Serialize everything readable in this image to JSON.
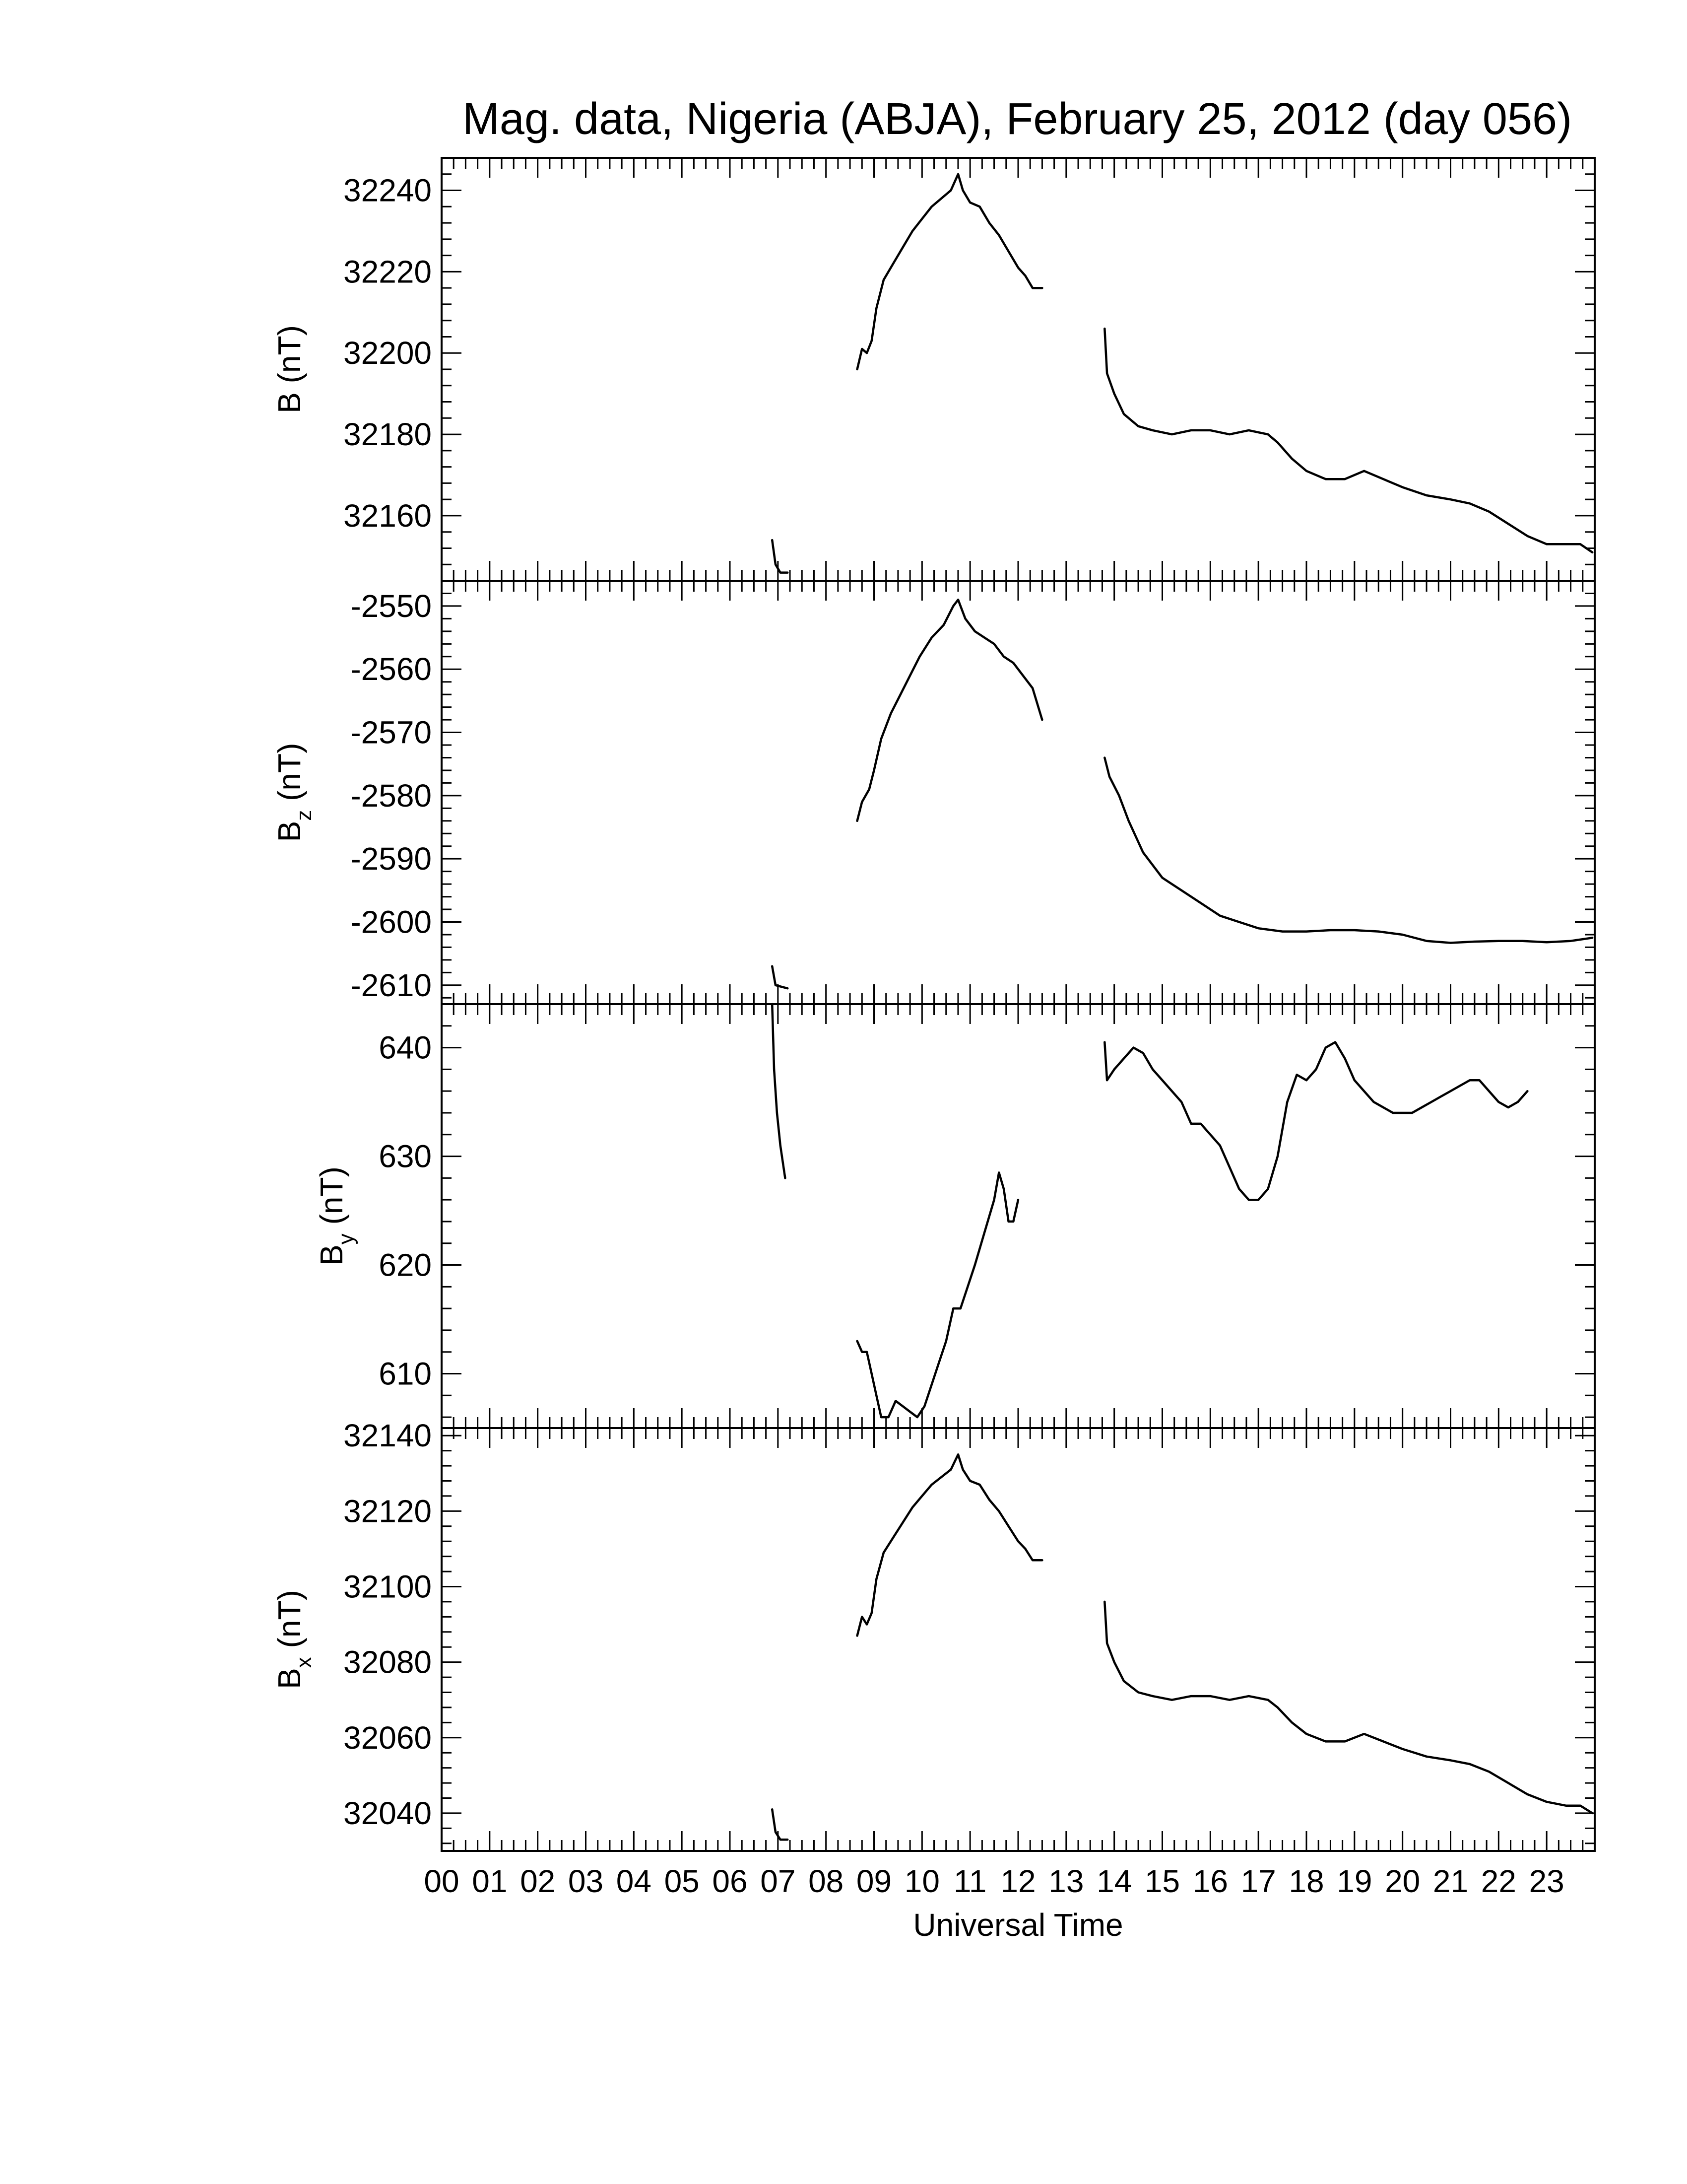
{
  "chart_data": {
    "type": "line",
    "title": "Mag. data, Nigeria (ABJA), February 25, 2012 (day 056)",
    "xlabel": "Universal Time",
    "xlim": [
      0,
      24
    ],
    "x_tick_labels": [
      "00",
      "01",
      "02",
      "03",
      "04",
      "05",
      "06",
      "07",
      "08",
      "09",
      "10",
      "11",
      "12",
      "13",
      "14",
      "15",
      "16",
      "17",
      "18",
      "19",
      "20",
      "21",
      "22",
      "23"
    ],
    "panels": [
      {
        "ylabel_main": "B",
        "ylabel_sub": "",
        "ylabel_unit": "(nT)",
        "ylim": [
          32144,
          32248
        ],
        "y_ticks": [
          32160,
          32180,
          32200,
          32220,
          32240
        ],
        "segments": [
          [
            [
              6.88,
              32154
            ],
            [
              6.95,
              32148
            ],
            [
              7.05,
              32146
            ],
            [
              7.2,
              32146
            ]
          ],
          [
            [
              8.65,
              32196
            ],
            [
              8.75,
              32201
            ],
            [
              8.85,
              32200
            ],
            [
              8.95,
              32203
            ],
            [
              9.05,
              32211
            ],
            [
              9.2,
              32218
            ],
            [
              9.4,
              32222
            ],
            [
              9.6,
              32226
            ],
            [
              9.8,
              32230
            ],
            [
              10.0,
              32233
            ],
            [
              10.2,
              32236
            ],
            [
              10.4,
              32238
            ],
            [
              10.6,
              32240
            ],
            [
              10.75,
              32244
            ],
            [
              10.85,
              32240
            ],
            [
              11.0,
              32237
            ],
            [
              11.2,
              32236
            ],
            [
              11.4,
              32232
            ],
            [
              11.6,
              32229
            ],
            [
              11.8,
              32225
            ],
            [
              12.0,
              32221
            ],
            [
              12.15,
              32219
            ],
            [
              12.3,
              32216
            ],
            [
              12.5,
              32216
            ]
          ],
          [
            [
              13.8,
              32206
            ],
            [
              13.85,
              32195
            ],
            [
              14.0,
              32190
            ],
            [
              14.2,
              32185
            ],
            [
              14.5,
              32182
            ],
            [
              14.8,
              32181
            ],
            [
              15.2,
              32180
            ],
            [
              15.6,
              32181
            ],
            [
              16.0,
              32181
            ],
            [
              16.4,
              32180
            ],
            [
              16.8,
              32181
            ],
            [
              17.2,
              32180
            ],
            [
              17.4,
              32178
            ],
            [
              17.7,
              32174
            ],
            [
              18.0,
              32171
            ],
            [
              18.4,
              32169
            ],
            [
              18.8,
              32169
            ],
            [
              19.2,
              32171
            ],
            [
              19.6,
              32169
            ],
            [
              20.0,
              32167
            ],
            [
              20.5,
              32165
            ],
            [
              21.0,
              32164
            ],
            [
              21.4,
              32163
            ],
            [
              21.8,
              32161
            ],
            [
              22.2,
              32158
            ],
            [
              22.6,
              32155
            ],
            [
              23.0,
              32153
            ],
            [
              23.4,
              32153
            ],
            [
              23.7,
              32153
            ],
            [
              23.95,
              32151
            ]
          ]
        ]
      },
      {
        "ylabel_main": "B",
        "ylabel_sub": "z",
        "ylabel_unit": "(nT)",
        "ylim": [
          -2613,
          -2546
        ],
        "y_ticks": [
          -2550,
          -2560,
          -2570,
          -2580,
          -2590,
          -2600,
          -2610
        ],
        "segments": [
          [
            [
              6.88,
              -2607
            ],
            [
              6.95,
              -2610
            ],
            [
              7.2,
              -2610.5
            ]
          ],
          [
            [
              8.65,
              -2584
            ],
            [
              8.75,
              -2581
            ],
            [
              8.9,
              -2579
            ],
            [
              9.0,
              -2576
            ],
            [
              9.15,
              -2571
            ],
            [
              9.35,
              -2567
            ],
            [
              9.55,
              -2564
            ],
            [
              9.75,
              -2561
            ],
            [
              9.95,
              -2558
            ],
            [
              10.2,
              -2555
            ],
            [
              10.45,
              -2553
            ],
            [
              10.65,
              -2550
            ],
            [
              10.75,
              -2549
            ],
            [
              10.9,
              -2552
            ],
            [
              11.1,
              -2554
            ],
            [
              11.3,
              -2555
            ],
            [
              11.5,
              -2556
            ],
            [
              11.7,
              -2558
            ],
            [
              11.9,
              -2559
            ],
            [
              12.1,
              -2561
            ],
            [
              12.3,
              -2563
            ],
            [
              12.5,
              -2568
            ]
          ],
          [
            [
              13.8,
              -2574
            ],
            [
              13.9,
              -2577
            ],
            [
              14.1,
              -2580
            ],
            [
              14.3,
              -2584
            ],
            [
              14.6,
              -2589
            ],
            [
              15.0,
              -2593
            ],
            [
              15.4,
              -2595
            ],
            [
              15.8,
              -2597
            ],
            [
              16.2,
              -2599
            ],
            [
              16.6,
              -2600
            ],
            [
              17.0,
              -2601
            ],
            [
              17.5,
              -2601.5
            ],
            [
              18.0,
              -2601.5
            ],
            [
              18.5,
              -2601.3
            ],
            [
              19.0,
              -2601.3
            ],
            [
              19.5,
              -2601.5
            ],
            [
              20.0,
              -2602
            ],
            [
              20.5,
              -2603
            ],
            [
              21.0,
              -2603.3
            ],
            [
              21.5,
              -2603.1
            ],
            [
              22.0,
              -2603
            ],
            [
              22.5,
              -2603
            ],
            [
              23.0,
              -2603.2
            ],
            [
              23.5,
              -2603
            ],
            [
              23.95,
              -2602.5
            ]
          ]
        ]
      },
      {
        "ylabel_main": "B",
        "ylabel_sub": "y",
        "ylabel_unit": "(nT)",
        "ylim": [
          605,
          644
        ],
        "y_ticks": [
          610,
          620,
          630,
          640
        ],
        "segments": [
          [
            [
              6.88,
              644
            ],
            [
              6.92,
              638
            ],
            [
              6.98,
              634
            ],
            [
              7.05,
              631
            ],
            [
              7.15,
              628
            ]
          ],
          [
            [
              8.65,
              613
            ],
            [
              8.75,
              612
            ],
            [
              8.85,
              612
            ],
            [
              8.95,
              610
            ],
            [
              9.05,
              608
            ],
            [
              9.15,
              606
            ],
            [
              9.3,
              606
            ],
            [
              9.45,
              607.5
            ],
            [
              9.6,
              607
            ],
            [
              9.75,
              606.5
            ],
            [
              9.9,
              606
            ],
            [
              10.05,
              607
            ],
            [
              10.2,
              609
            ],
            [
              10.35,
              611
            ],
            [
              10.5,
              613
            ],
            [
              10.65,
              616
            ],
            [
              10.8,
              616
            ],
            [
              10.95,
              618
            ],
            [
              11.1,
              620
            ],
            [
              11.3,
              623
            ],
            [
              11.5,
              626
            ],
            [
              11.6,
              628.5
            ],
            [
              11.7,
              627
            ],
            [
              11.8,
              624
            ],
            [
              11.9,
              624
            ],
            [
              12.0,
              626
            ]
          ],
          [
            [
              13.8,
              640.5
            ],
            [
              13.85,
              637
            ],
            [
              14.0,
              638
            ],
            [
              14.2,
              639
            ],
            [
              14.4,
              640
            ],
            [
              14.6,
              639.5
            ],
            [
              14.8,
              638
            ],
            [
              15.0,
              637
            ],
            [
              15.2,
              636
            ],
            [
              15.4,
              635
            ],
            [
              15.6,
              633
            ],
            [
              15.8,
              633
            ],
            [
              16.0,
              632
            ],
            [
              16.2,
              631
            ],
            [
              16.4,
              629
            ],
            [
              16.6,
              627
            ],
            [
              16.8,
              626
            ],
            [
              17.0,
              626
            ],
            [
              17.2,
              627
            ],
            [
              17.4,
              630
            ],
            [
              17.6,
              635
            ],
            [
              17.8,
              637.5
            ],
            [
              18.0,
              637
            ],
            [
              18.2,
              638
            ],
            [
              18.4,
              640
            ],
            [
              18.6,
              640.5
            ],
            [
              18.8,
              639
            ],
            [
              19.0,
              637
            ],
            [
              19.2,
              636
            ],
            [
              19.4,
              635
            ],
            [
              19.6,
              634.5
            ],
            [
              19.8,
              634
            ],
            [
              20.0,
              634
            ],
            [
              20.2,
              634
            ],
            [
              20.4,
              634.5
            ],
            [
              20.6,
              635
            ],
            [
              20.8,
              635.5
            ],
            [
              21.0,
              636
            ],
            [
              21.2,
              636.5
            ],
            [
              21.4,
              637
            ],
            [
              21.6,
              637
            ],
            [
              21.8,
              636
            ],
            [
              22.0,
              635
            ],
            [
              22.2,
              634.5
            ],
            [
              22.4,
              635
            ],
            [
              22.6,
              636
            ]
          ]
        ]
      },
      {
        "ylabel_main": "B",
        "ylabel_sub": "x",
        "ylabel_unit": "(nT)",
        "ylim": [
          32030,
          32142
        ],
        "y_ticks": [
          32040,
          32060,
          32080,
          32100,
          32120,
          32140
        ],
        "segments": [
          [
            [
              6.88,
              32041
            ],
            [
              6.95,
              32035
            ],
            [
              7.05,
              32033
            ],
            [
              7.2,
              32033
            ]
          ],
          [
            [
              8.65,
              32087
            ],
            [
              8.75,
              32092
            ],
            [
              8.85,
              32090
            ],
            [
              8.95,
              32093
            ],
            [
              9.05,
              32102
            ],
            [
              9.2,
              32109
            ],
            [
              9.4,
              32113
            ],
            [
              9.6,
              32117
            ],
            [
              9.8,
              32121
            ],
            [
              10.0,
              32124
            ],
            [
              10.2,
              32127
            ],
            [
              10.4,
              32129
            ],
            [
              10.6,
              32131
            ],
            [
              10.75,
              32135
            ],
            [
              10.85,
              32131
            ],
            [
              11.0,
              32128
            ],
            [
              11.2,
              32127
            ],
            [
              11.4,
              32123
            ],
            [
              11.6,
              32120
            ],
            [
              11.8,
              32116
            ],
            [
              12.0,
              32112
            ],
            [
              12.15,
              32110
            ],
            [
              12.3,
              32107
            ],
            [
              12.5,
              32107
            ]
          ],
          [
            [
              13.8,
              32096
            ],
            [
              13.85,
              32085
            ],
            [
              14.0,
              32080
            ],
            [
              14.2,
              32075
            ],
            [
              14.5,
              32072
            ],
            [
              14.8,
              32071
            ],
            [
              15.2,
              32070
            ],
            [
              15.6,
              32071
            ],
            [
              16.0,
              32071
            ],
            [
              16.4,
              32070
            ],
            [
              16.8,
              32071
            ],
            [
              17.2,
              32070
            ],
            [
              17.4,
              32068
            ],
            [
              17.7,
              32064
            ],
            [
              18.0,
              32061
            ],
            [
              18.4,
              32059
            ],
            [
              18.8,
              32059
            ],
            [
              19.2,
              32061
            ],
            [
              19.6,
              32059
            ],
            [
              20.0,
              32057
            ],
            [
              20.5,
              32055
            ],
            [
              21.0,
              32054
            ],
            [
              21.4,
              32053
            ],
            [
              21.8,
              32051
            ],
            [
              22.2,
              32048
            ],
            [
              22.6,
              32045
            ],
            [
              23.0,
              32043
            ],
            [
              23.4,
              32042
            ],
            [
              23.7,
              32042
            ],
            [
              23.95,
              32040
            ]
          ]
        ]
      }
    ]
  }
}
